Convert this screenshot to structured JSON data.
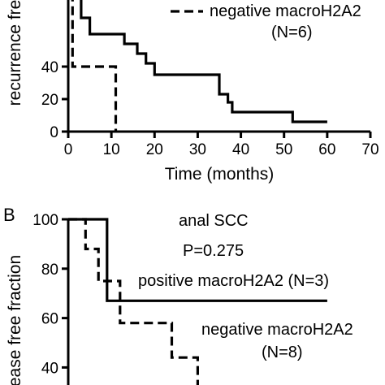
{
  "chart_data": [
    {
      "type": "line",
      "panel": "",
      "xlabel": "Time (months)",
      "ylabel": "recurrence fre",
      "xlim": [
        0,
        70
      ],
      "ylim": [
        0,
        100
      ],
      "xticks": [
        "0",
        "10",
        "20",
        "30",
        "40",
        "50",
        "60",
        "70"
      ],
      "yticks": [
        "0",
        "20",
        "40"
      ],
      "annotations": [
        {
          "text": "negative macroH2A2"
        },
        {
          "text": "(N=6)"
        }
      ],
      "series": [
        {
          "name": "positive macroH2A2",
          "style": "solid",
          "x": [
            1,
            1,
            2,
            2,
            3,
            3,
            5,
            5,
            13,
            13,
            16,
            16,
            18,
            18,
            20,
            20,
            23,
            23,
            35,
            35,
            37,
            37,
            38,
            38,
            40,
            40,
            52,
            52,
            60
          ],
          "y": [
            100,
            95,
            95,
            90,
            90,
            70,
            70,
            60,
            60,
            54,
            54,
            48,
            48,
            42,
            42,
            35,
            35,
            35,
            35,
            23,
            23,
            18,
            18,
            12,
            12,
            12,
            12,
            6,
            6
          ]
        },
        {
          "name": "negative macroH2A2",
          "style": "dashed",
          "x": [
            0,
            0,
            1,
            1,
            2,
            2,
            11,
            11
          ],
          "y": [
            100,
            96,
            96,
            40,
            40,
            40,
            40,
            0
          ]
        }
      ]
    },
    {
      "type": "line",
      "panel": "B",
      "xlabel": "",
      "ylabel": "ease free fraction",
      "xlim": [
        0,
        70
      ],
      "ylim": [
        0,
        100
      ],
      "yticks": [
        "40",
        "60",
        "80",
        "100"
      ],
      "annotations": [
        {
          "text": "anal SCC"
        },
        {
          "text": "P=0.275"
        },
        {
          "text": "positive macroH2A2 (N=3)"
        },
        {
          "text": "negative macroH2A2"
        },
        {
          "text": "(N=8)"
        }
      ],
      "series": [
        {
          "name": "positive macroH2A2",
          "style": "solid",
          "x": [
            0,
            7,
            7,
            9,
            9,
            60
          ],
          "y": [
            100,
            100,
            100,
            100,
            67,
            67
          ]
        },
        {
          "name": "negative macroH2A2",
          "style": "dashed",
          "x": [
            0,
            4,
            4,
            7,
            7,
            12,
            12,
            24,
            24,
            30,
            30,
            33,
            33,
            40
          ],
          "y": [
            100,
            100,
            88,
            88,
            75,
            75,
            58,
            58,
            44,
            44,
            30,
            30,
            30,
            30
          ]
        }
      ]
    }
  ]
}
